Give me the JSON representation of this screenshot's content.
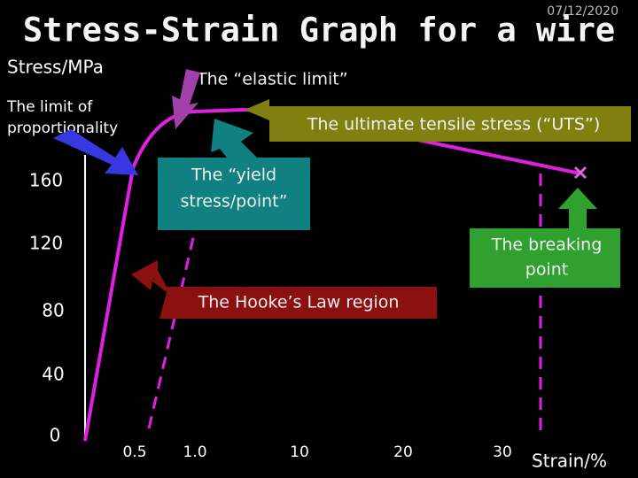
{
  "header": {
    "date": "07/12/2020",
    "title": "Stress-Strain Graph for a wire"
  },
  "axes": {
    "y_label": "Stress/MPa",
    "x_label": "Strain/%",
    "y_ticks": [
      "160",
      "120",
      "80",
      "40",
      "0"
    ],
    "x_ticks": [
      "0.5",
      "1.0",
      "10",
      "20",
      "30"
    ]
  },
  "annotations": {
    "elastic_limit": "The “elastic limit”",
    "limit_of_proportionality": [
      "The limit of",
      "proportionality"
    ],
    "uts": "The ultimate tensile stress (“UTS”)",
    "yield_point": [
      "The “yield",
      "stress/point”"
    ],
    "breaking_point": [
      "The breaking",
      "point"
    ],
    "hookes_law": "The Hooke’s Law region"
  }
}
